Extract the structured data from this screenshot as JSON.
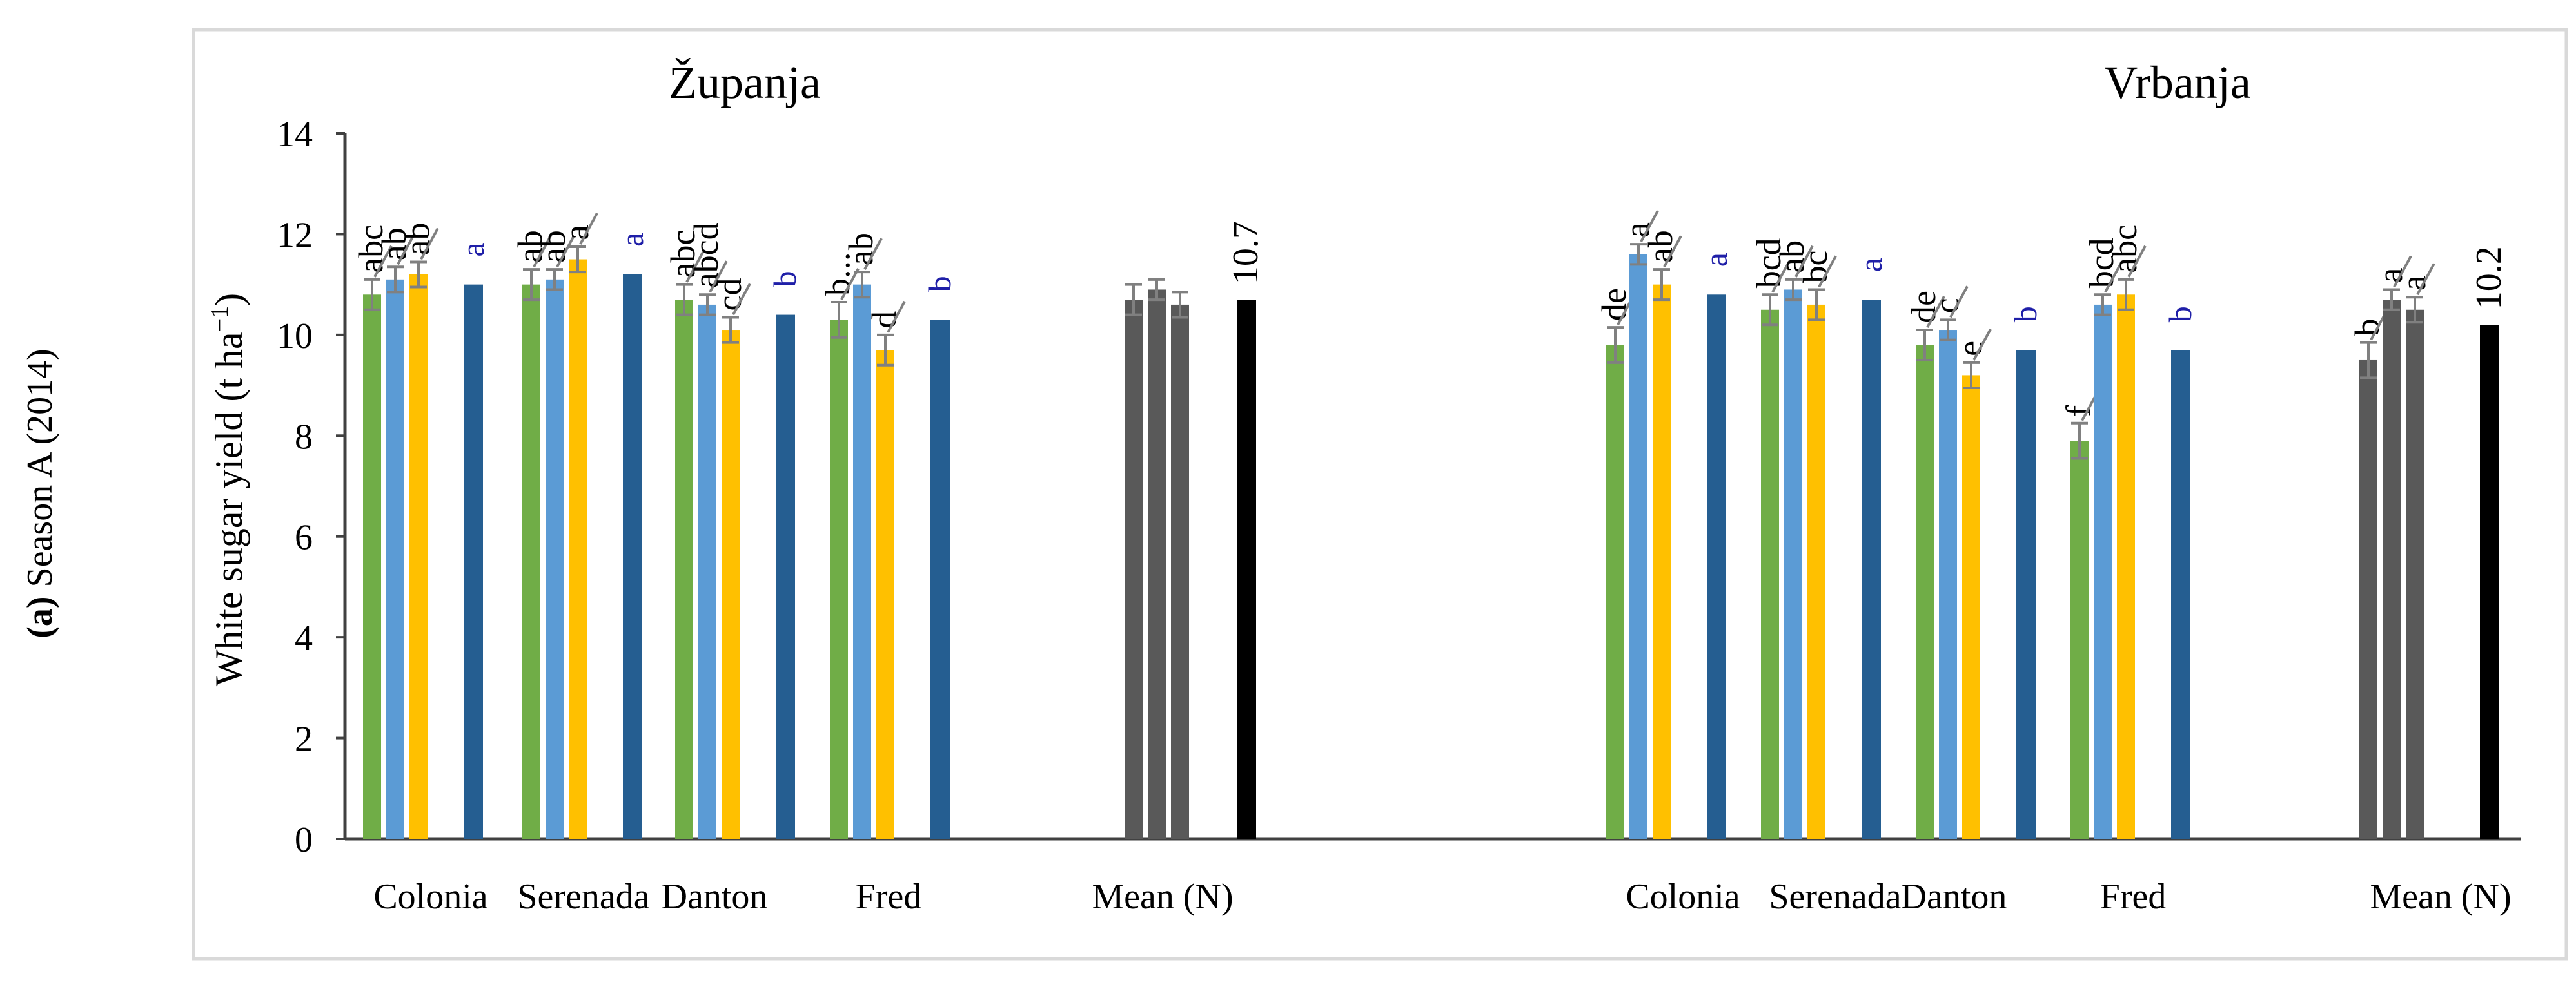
{
  "chart_data": {
    "type": "bar",
    "side_label_bold": "(a)",
    "side_label_rest": " Season A (2014)",
    "ylabel_main": "White sugar yield (t ha",
    "ylabel_sup": "−1",
    "ylabel_close": ")",
    "ylim": [
      0,
      14
    ],
    "yticks": [
      0,
      2,
      4,
      6,
      8,
      10,
      12,
      14
    ],
    "colors": {
      "n1": "#70ad47",
      "n2": "#5b9bd5",
      "n3": "#ffc000",
      "variety_mean": "#255e91",
      "n_mean": "#595959",
      "grand_mean": "#000000",
      "mean_letter": "#1f1fa8",
      "axis": "#404040",
      "frame": "#d9d9d9",
      "error": "#808080"
    },
    "panels": [
      {
        "title": "Županja",
        "varieties": [
          {
            "name": "Colonia",
            "bars": [
              10.8,
              11.1,
              11.2
            ],
            "errors": [
              0.3,
              0.25,
              0.25
            ],
            "letters": [
              "abc",
              "ab",
              "ab"
            ],
            "mean": 11.0,
            "mean_letter": "a"
          },
          {
            "name": "Serenada",
            "bars": [
              11.0,
              11.1,
              11.5
            ],
            "errors": [
              0.3,
              0.2,
              0.25
            ],
            "letters": [
              "ab",
              "ab",
              "a"
            ],
            "mean": 11.2,
            "mean_letter": "a"
          },
          {
            "name": "Danton",
            "bars": [
              10.7,
              10.6,
              10.1
            ],
            "errors": [
              0.3,
              0.2,
              0.25
            ],
            "letters": [
              "abc",
              "abcd",
              "cd"
            ],
            "mean": 10.4,
            "mean_letter": "b"
          },
          {
            "name": "Fred",
            "bars": [
              10.3,
              11.0,
              9.7
            ],
            "errors": [
              0.35,
              0.25,
              0.3
            ],
            "letters": [
              "b...",
              "ab",
              "d"
            ],
            "mean": 10.3,
            "mean_letter": "b"
          }
        ],
        "n_means": [
          10.7,
          10.9,
          10.6
        ],
        "n_mean_errors": [
          0.3,
          0.2,
          0.25
        ],
        "n_mean_letters": [
          "",
          "",
          ""
        ],
        "grand_mean": 10.7,
        "grand_mean_label": "10.7",
        "mean_category": "Mean (N)"
      },
      {
        "title": "Vrbanja",
        "varieties": [
          {
            "name": "Colonia",
            "bars": [
              9.8,
              11.6,
              11.0
            ],
            "errors": [
              0.35,
              0.2,
              0.3
            ],
            "letters": [
              "de",
              "a",
              "ab"
            ],
            "mean": 10.8,
            "mean_letter": "a"
          },
          {
            "name": "Serenada",
            "bars": [
              10.5,
              10.9,
              10.6
            ],
            "errors": [
              0.3,
              0.2,
              0.3
            ],
            "letters": [
              "bcd",
              "ab",
              "bc"
            ],
            "mean": 10.7,
            "mean_letter": "a"
          },
          {
            "name": "Danton",
            "bars": [
              9.8,
              10.1,
              9.2
            ],
            "errors": [
              0.3,
              0.2,
              0.25
            ],
            "letters": [
              "de",
              "c",
              "e"
            ],
            "mean": 9.7,
            "mean_letter": "b"
          },
          {
            "name": "Fred",
            "bars": [
              7.9,
              10.6,
              10.8
            ],
            "errors": [
              0.35,
              0.2,
              0.3
            ],
            "letters": [
              "f",
              "bcd",
              "abc"
            ],
            "mean": 9.7,
            "mean_letter": "b"
          }
        ],
        "n_means": [
          9.5,
          10.7,
          10.5
        ],
        "n_mean_errors": [
          0.35,
          0.2,
          0.25
        ],
        "n_mean_letters": [
          "b",
          "a",
          "a"
        ],
        "grand_mean": 10.2,
        "grand_mean_label": "10.2",
        "mean_category": "Mean (N)"
      }
    ]
  }
}
